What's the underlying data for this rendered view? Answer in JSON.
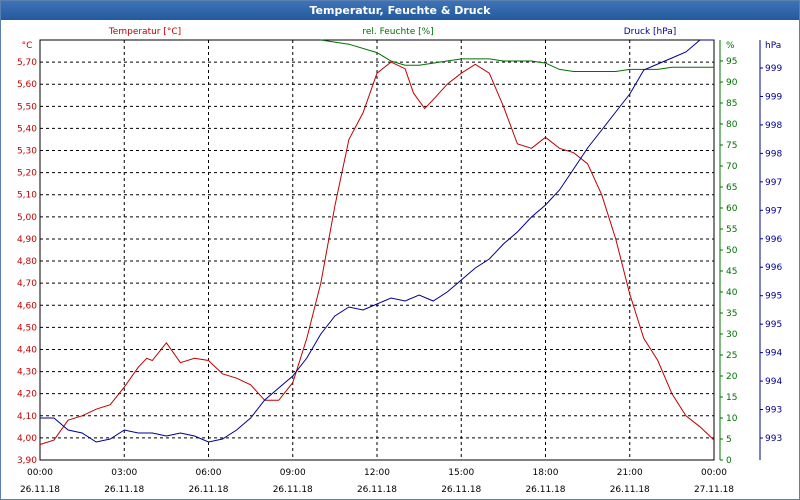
{
  "window": {
    "title": "Temperatur, Feuchte & Druck"
  },
  "colors": {
    "temp": "#c00000",
    "hum": "#007000",
    "press": "#000090",
    "grid": "#000000"
  },
  "chart_data": {
    "type": "line",
    "title": "Temperatur, Feuchte & Druck",
    "x_ticks": [
      {
        "time": "00:00",
        "date": "26.11.18"
      },
      {
        "time": "03:00",
        "date": "26.11.18"
      },
      {
        "time": "06:00",
        "date": "26.11.18"
      },
      {
        "time": "09:00",
        "date": "26.11.18"
      },
      {
        "time": "12:00",
        "date": "26.11.18"
      },
      {
        "time": "15:00",
        "date": "26.11.18"
      },
      {
        "time": "18:00",
        "date": "26.11.18"
      },
      {
        "time": "21:00",
        "date": "26.11.18"
      },
      {
        "time": "00:00",
        "date": "27.11.18"
      }
    ],
    "x_range_hours": [
      0,
      24
    ],
    "axes": {
      "temp": {
        "label": "Temperatur [°C]",
        "unit": "°C",
        "range": [
          3.9,
          5.8
        ],
        "ticks": [
          "3,90",
          "4,00",
          "4,10",
          "4,20",
          "4,30",
          "4,40",
          "4,50",
          "4,60",
          "4,70",
          "4,80",
          "4,90",
          "5,00",
          "5,10",
          "5,20",
          "5,30",
          "5,40",
          "5,50",
          "5,60",
          "5,70"
        ]
      },
      "hum": {
        "label": "rel. Feuchte [%]",
        "unit": "%",
        "range": [
          0,
          100
        ],
        "ticks": [
          "0",
          "5",
          "10",
          "15",
          "20",
          "25",
          "30",
          "35",
          "40",
          "45",
          "50",
          "55",
          "60",
          "65",
          "70",
          "75",
          "80",
          "85",
          "90",
          "95"
        ]
      },
      "press": {
        "label": "Druck [hPa]",
        "unit": "hPa",
        "range": [
          992.5,
          999.5
        ],
        "ticks": [
          "993",
          "993",
          "994",
          "994",
          "995",
          "995",
          "996",
          "996",
          "997",
          "997",
          "998",
          "998",
          "999",
          "999"
        ]
      }
    },
    "series": [
      {
        "name": "Temperatur [°C]",
        "axis": "temp",
        "x": [
          0,
          0.5,
          1,
          1.5,
          2,
          2.5,
          3,
          3.5,
          3.8,
          4,
          4.5,
          5,
          5.5,
          6,
          6.5,
          7,
          7.5,
          8,
          8.5,
          9,
          9.5,
          10,
          10.5,
          11,
          11.5,
          12,
          12.5,
          13,
          13.3,
          13.7,
          14,
          14.5,
          15,
          15.5,
          16,
          16.5,
          17,
          17.5,
          18,
          18.5,
          19,
          19.5,
          20,
          20.5,
          21,
          21.5,
          22,
          22.5,
          23,
          23.5,
          24
        ],
        "values": [
          3.97,
          3.99,
          4.08,
          4.1,
          4.13,
          4.15,
          4.23,
          4.32,
          4.36,
          4.35,
          4.43,
          4.34,
          4.36,
          4.35,
          4.29,
          4.27,
          4.24,
          4.17,
          4.17,
          4.25,
          4.45,
          4.7,
          5.05,
          5.35,
          5.47,
          5.65,
          5.7,
          5.67,
          5.56,
          5.49,
          5.53,
          5.6,
          5.65,
          5.69,
          5.65,
          5.5,
          5.33,
          5.31,
          5.36,
          5.31,
          5.29,
          5.24,
          5.1,
          4.9,
          4.65,
          4.45,
          4.35,
          4.2,
          4.1,
          4.05,
          3.99
        ]
      },
      {
        "name": "rel. Feuchte [%]",
        "axis": "hum",
        "x": [
          10,
          11,
          12,
          12.5,
          13,
          13.5,
          14,
          14.5,
          15,
          15.5,
          16,
          16.5,
          17,
          17.5,
          18,
          18.5,
          19,
          19.5,
          20,
          20.5,
          21,
          21.5,
          22,
          22.5,
          23,
          23.5,
          24
        ],
        "values": [
          100,
          99,
          97,
          95,
          94,
          94,
          94.5,
          95,
          95.5,
          95.5,
          95.5,
          95,
          95,
          95,
          94.5,
          93,
          92.5,
          92.5,
          92.5,
          92.5,
          93,
          93,
          93,
          93.5,
          93.5,
          93.5,
          93.5
        ]
      },
      {
        "name": "Druck [hPa]",
        "axis": "press",
        "x": [
          0,
          0.5,
          1,
          1.5,
          2,
          2.5,
          3,
          3.5,
          4,
          4.5,
          5,
          5.5,
          6,
          6.5,
          7,
          7.5,
          8,
          8.5,
          9,
          9.5,
          10,
          10.5,
          11,
          11.5,
          12,
          12.5,
          13,
          13.5,
          14,
          14.5,
          15,
          15.5,
          16,
          16.5,
          17,
          17.5,
          18,
          18.5,
          19,
          19.5,
          20,
          20.5,
          21,
          21.5,
          22,
          22.5,
          23,
          23.5,
          24
        ],
        "values": [
          993.2,
          993.2,
          993.0,
          992.95,
          992.8,
          992.85,
          993.0,
          992.95,
          992.95,
          992.9,
          992.95,
          992.9,
          992.8,
          992.85,
          993.0,
          993.2,
          993.5,
          993.7,
          993.9,
          994.2,
          994.6,
          994.9,
          995.05,
          995.0,
          995.1,
          995.2,
          995.15,
          995.25,
          995.15,
          995.3,
          995.5,
          995.7,
          995.85,
          996.1,
          996.3,
          996.55,
          996.75,
          997.0,
          997.35,
          997.7,
          998.0,
          998.3,
          998.6,
          999.0,
          999.1,
          999.2,
          999.3,
          999.5,
          999.75
        ]
      }
    ]
  }
}
